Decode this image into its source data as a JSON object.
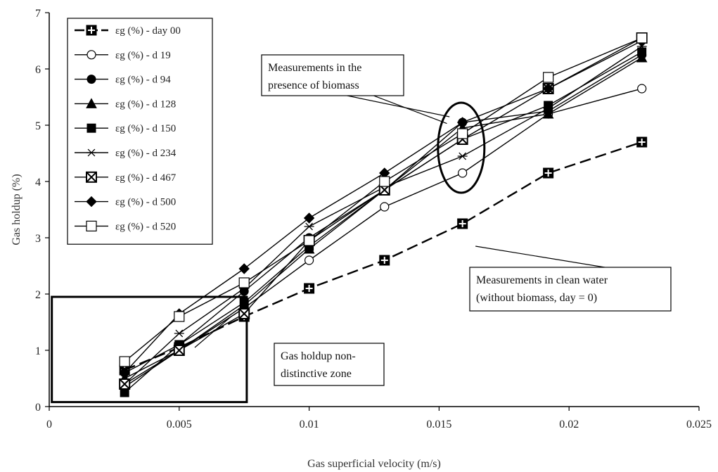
{
  "chart_data": {
    "type": "line",
    "title": "",
    "xlabel": "Gas superficial velocity (m/s)",
    "ylabel": "Gas holdup (%)",
    "xlim": [
      0,
      0.025
    ],
    "ylim": [
      0,
      7
    ],
    "xticks": [
      "0",
      "0.005",
      "0.01",
      "0.015",
      "0.02",
      "0.025"
    ],
    "xtick_values": [
      0,
      0.005,
      0.01,
      0.015,
      0.02,
      0.025
    ],
    "yticks": [
      "0",
      "1",
      "2",
      "3",
      "4",
      "5",
      "6",
      "7"
    ],
    "ytick_values": [
      0,
      1,
      2,
      3,
      4,
      5,
      6,
      7
    ],
    "grid": false,
    "legend_position": "top-left",
    "x": [
      0.0029,
      0.005,
      0.0075,
      0.01,
      0.0129,
      0.0159,
      0.0192,
      0.0228
    ],
    "series": [
      {
        "name": "εg (%) - day 00",
        "marker": "crossbox",
        "dashed": true,
        "values": [
          0.65,
          1.05,
          1.6,
          2.1,
          2.6,
          3.25,
          4.15,
          4.7
        ]
      },
      {
        "name": "εg (%) - d 19",
        "marker": "circle-open",
        "dashed": false,
        "values": [
          0.35,
          1.0,
          1.75,
          2.6,
          3.55,
          4.15,
          5.2,
          5.65
        ]
      },
      {
        "name": "εg (%) - d 94",
        "marker": "circle-filled",
        "dashed": false,
        "values": [
          0.6,
          1.1,
          2.05,
          3.0,
          3.85,
          5.05,
          5.25,
          6.25
        ]
      },
      {
        "name": "εg (%) - d 128",
        "marker": "triangle",
        "dashed": false,
        "values": [
          0.5,
          1.0,
          1.8,
          2.8,
          3.85,
          4.95,
          5.2,
          6.2
        ]
      },
      {
        "name": "εg (%) - d 150",
        "marker": "square-filled",
        "dashed": false,
        "values": [
          0.25,
          1.1,
          1.85,
          2.85,
          3.85,
          4.75,
          5.35,
          6.3
        ]
      },
      {
        "name": "εg (%) - d 234",
        "marker": "asterisk",
        "dashed": false,
        "values": [
          0.4,
          1.3,
          2.1,
          3.2,
          3.9,
          4.45,
          5.3,
          6.4
        ]
      },
      {
        "name": "εg (%) - d 467",
        "marker": "xbox",
        "dashed": false,
        "values": [
          0.4,
          1.0,
          1.65,
          2.95,
          3.85,
          4.75,
          5.65,
          6.55
        ]
      },
      {
        "name": "εg (%) - d 500",
        "marker": "diamond",
        "dashed": false,
        "values": [
          0.6,
          1.65,
          2.45,
          3.35,
          4.15,
          5.05,
          5.65,
          6.5
        ]
      },
      {
        "name": "εg (%) - d 520",
        "marker": "square-open",
        "dashed": false,
        "values": [
          0.8,
          1.6,
          2.2,
          2.95,
          4.0,
          4.85,
          5.85,
          6.55
        ]
      }
    ],
    "annotations": [
      {
        "lines": [
          "Measurements in the",
          "presence of biomass"
        ]
      },
      {
        "lines": [
          "Measurements in clean water",
          "(without biomass,  day = 0)"
        ]
      },
      {
        "lines": [
          "Gas holdup non-",
          "distinctive zone"
        ]
      }
    ]
  }
}
